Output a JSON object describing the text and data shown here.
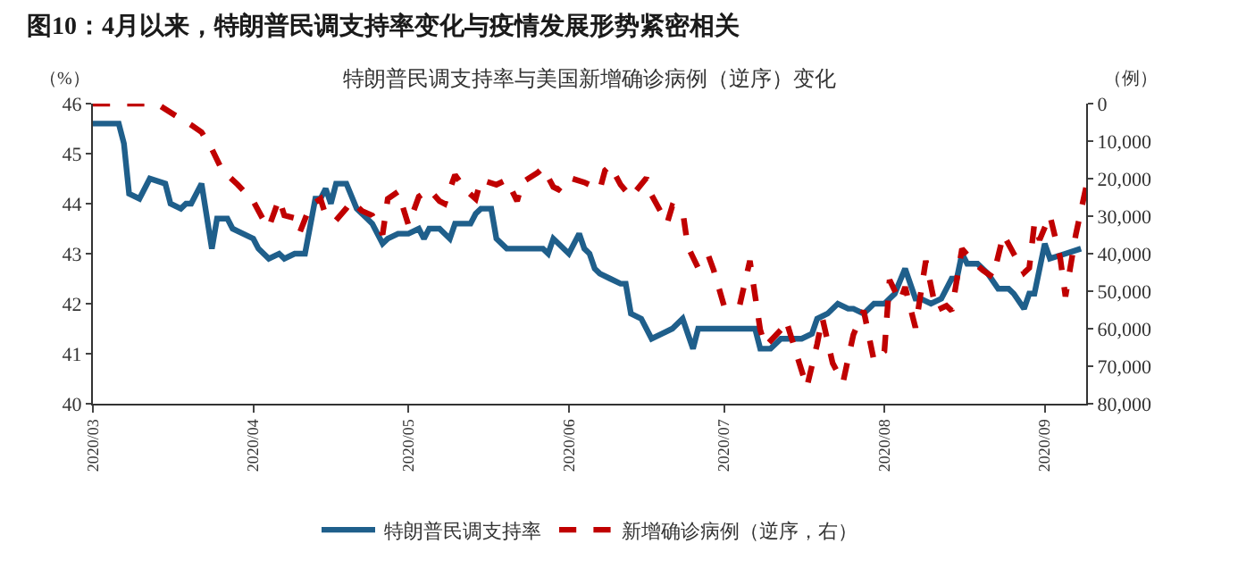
{
  "chart_data": {
    "type": "line",
    "title": "图10：4月以来，特朗普民调支持率变化与疫情发展形势紧密相关",
    "subtitle": "特朗普民调支持率与美国新增确诊病例（逆序）变化",
    "ylabel": "（%）",
    "y2label": "（例）",
    "xlim": [
      "2020-03-01",
      "2020-09-09"
    ],
    "xticks": [
      {
        "value": "2020-03-01",
        "label": "2020/03"
      },
      {
        "value": "2020-04-01",
        "label": "2020/04"
      },
      {
        "value": "2020-05-01",
        "label": "2020/05"
      },
      {
        "value": "2020-06-01",
        "label": "2020/06"
      },
      {
        "value": "2020-07-01",
        "label": "2020/07"
      },
      {
        "value": "2020-08-01",
        "label": "2020/08"
      },
      {
        "value": "2020-09-01",
        "label": "2020/09"
      }
    ],
    "ylim": [
      40,
      46
    ],
    "yticks": [
      40,
      41,
      42,
      43,
      44,
      45,
      46
    ],
    "y2lim": [
      80000,
      0
    ],
    "y2ticks": [
      0,
      {
        "value": 10000,
        "label": "10,000"
      },
      {
        "value": 20000,
        "label": "20,000"
      },
      {
        "value": 30000,
        "label": "30,000"
      },
      {
        "value": 40000,
        "label": "40,000"
      },
      {
        "value": 50000,
        "label": "50,000"
      },
      {
        "value": 60000,
        "label": "60,000"
      },
      {
        "value": 70000,
        "label": "70,000"
      },
      {
        "value": 80000,
        "label": "80,000"
      }
    ],
    "legend": "bottom",
    "series": [
      {
        "name": "特朗普民调支持率",
        "color": "#1f5f8b",
        "line_style": "solid",
        "x": [
          "2020-03-01",
          "2020-03-06",
          "2020-03-07",
          "2020-03-08",
          "2020-03-10",
          "2020-03-12",
          "2020-03-15",
          "2020-03-16",
          "2020-03-18",
          "2020-03-19",
          "2020-03-20",
          "2020-03-22",
          "2020-03-24",
          "2020-03-25",
          "2020-03-27",
          "2020-03-28",
          "2020-04-01",
          "2020-04-02",
          "2020-04-04",
          "2020-04-06",
          "2020-04-07",
          "2020-04-09",
          "2020-04-11",
          "2020-04-13",
          "2020-04-14",
          "2020-04-15",
          "2020-04-16",
          "2020-04-17",
          "2020-04-19",
          "2020-04-21",
          "2020-04-23",
          "2020-04-24",
          "2020-04-26",
          "2020-04-27",
          "2020-04-29",
          "2020-05-01",
          "2020-05-03",
          "2020-05-04",
          "2020-05-05",
          "2020-05-07",
          "2020-05-09",
          "2020-05-10",
          "2020-05-13",
          "2020-05-14",
          "2020-05-15",
          "2020-05-17",
          "2020-05-18",
          "2020-05-20",
          "2020-05-23",
          "2020-05-25",
          "2020-05-27",
          "2020-05-28",
          "2020-05-29",
          "2020-05-30",
          "2020-06-01",
          "2020-06-03",
          "2020-06-04",
          "2020-06-05",
          "2020-06-06",
          "2020-06-07",
          "2020-06-09",
          "2020-06-11",
          "2020-06-12",
          "2020-06-13",
          "2020-06-15",
          "2020-06-17",
          "2020-06-19",
          "2020-06-21",
          "2020-06-23",
          "2020-06-24",
          "2020-06-25",
          "2020-06-26",
          "2020-06-29",
          "2020-07-01",
          "2020-07-07",
          "2020-07-08",
          "2020-07-10",
          "2020-07-12",
          "2020-07-16",
          "2020-07-18",
          "2020-07-19",
          "2020-07-21",
          "2020-07-23",
          "2020-07-25",
          "2020-07-26",
          "2020-07-28",
          "2020-07-30",
          "2020-08-01",
          "2020-08-03",
          "2020-08-05",
          "2020-08-07",
          "2020-08-08",
          "2020-08-10",
          "2020-08-12",
          "2020-08-14",
          "2020-08-15",
          "2020-08-16",
          "2020-08-17",
          "2020-08-19",
          "2020-08-21",
          "2020-08-23",
          "2020-08-25",
          "2020-08-26",
          "2020-08-28",
          "2020-08-29",
          "2020-08-30",
          "2020-09-01",
          "2020-09-02",
          "2020-09-05",
          "2020-09-08"
        ],
        "values": [
          45.6,
          45.6,
          45.2,
          44.2,
          44.1,
          44.5,
          44.4,
          44.0,
          43.9,
          44.0,
          44.0,
          44.4,
          43.1,
          43.7,
          43.7,
          43.5,
          43.3,
          43.1,
          42.9,
          43.0,
          42.9,
          43.0,
          43.0,
          44.1,
          44.1,
          44.3,
          44.0,
          44.4,
          44.4,
          43.9,
          43.7,
          43.6,
          43.2,
          43.3,
          43.4,
          43.4,
          43.5,
          43.3,
          43.5,
          43.5,
          43.3,
          43.6,
          43.6,
          43.8,
          43.9,
          43.9,
          43.3,
          43.1,
          43.1,
          43.1,
          43.1,
          43.0,
          43.3,
          43.2,
          43.0,
          43.4,
          43.1,
          43.0,
          42.7,
          42.6,
          42.5,
          42.4,
          42.4,
          41.8,
          41.7,
          41.3,
          41.4,
          41.5,
          41.7,
          41.4,
          41.1,
          41.5,
          41.5,
          41.5,
          41.5,
          41.1,
          41.1,
          41.3,
          41.3,
          41.4,
          41.7,
          41.8,
          42.0,
          41.9,
          41.9,
          41.8,
          42.0,
          42.0,
          42.2,
          42.7,
          42.1,
          42.1,
          42.0,
          42.1,
          42.5,
          42.5,
          43.0,
          42.8,
          42.8,
          42.6,
          42.3,
          42.3,
          42.2,
          41.9,
          42.2,
          42.2,
          43.2,
          42.9,
          43.0,
          43.1
        ]
      },
      {
        "name": "新增确诊病例（逆序，右）",
        "color": "#c00000",
        "line_style": "dashed",
        "axis": "y2",
        "x": [
          "2020-03-01",
          "2020-03-11",
          "2020-03-14",
          "2020-03-17",
          "2020-03-20",
          "2020-03-22",
          "2020-03-24",
          "2020-03-26",
          "2020-03-29",
          "2020-04-01",
          "2020-04-03",
          "2020-04-04",
          "2020-04-06",
          "2020-04-07",
          "2020-04-09",
          "2020-04-10",
          "2020-04-12",
          "2020-04-14",
          "2020-04-15",
          "2020-04-17",
          "2020-04-19",
          "2020-04-20",
          "2020-04-22",
          "2020-04-24",
          "2020-04-26",
          "2020-04-27",
          "2020-04-29",
          "2020-05-01",
          "2020-05-03",
          "2020-05-05",
          "2020-05-07",
          "2020-05-08",
          "2020-05-10",
          "2020-05-12",
          "2020-05-14",
          "2020-05-15",
          "2020-05-18",
          "2020-05-20",
          "2020-05-22",
          "2020-05-23",
          "2020-05-26",
          "2020-05-27",
          "2020-05-29",
          "2020-05-30",
          "2020-06-01",
          "2020-06-04",
          "2020-06-07",
          "2020-06-08",
          "2020-06-09",
          "2020-06-11",
          "2020-06-13",
          "2020-06-16",
          "2020-06-17",
          "2020-06-20",
          "2020-06-21",
          "2020-06-23",
          "2020-06-24",
          "2020-06-26",
          "2020-06-28",
          "2020-06-29",
          "2020-07-01",
          "2020-07-04",
          "2020-07-06",
          "2020-07-08",
          "2020-07-09",
          "2020-07-12",
          "2020-07-13",
          "2020-07-15",
          "2020-07-17",
          "2020-07-19",
          "2020-07-20",
          "2020-07-22",
          "2020-07-24",
          "2020-07-26",
          "2020-07-28",
          "2020-07-30",
          "2020-08-01",
          "2020-08-02",
          "2020-08-04",
          "2020-08-05",
          "2020-08-07",
          "2020-08-09",
          "2020-08-11",
          "2020-08-13",
          "2020-08-14",
          "2020-08-16",
          "2020-08-18",
          "2020-08-20",
          "2020-08-22",
          "2020-08-24",
          "2020-08-26",
          "2020-08-28",
          "2020-08-29",
          "2020-08-30",
          "2020-08-31",
          "2020-09-02",
          "2020-09-04",
          "2020-09-05",
          "2020-09-07",
          "2020-09-09"
        ],
        "values": [
          0,
          0,
          600,
          3200,
          5700,
          7600,
          12100,
          17800,
          21600,
          26000,
          31100,
          33000,
          25400,
          29800,
          30500,
          34300,
          27300,
          25400,
          29800,
          31100,
          27900,
          26000,
          28600,
          29800,
          34900,
          25400,
          23500,
          32400,
          24800,
          22900,
          26000,
          26700,
          19000,
          22900,
          25400,
          20300,
          21600,
          20300,
          26000,
          21000,
          18400,
          17100,
          22200,
          22900,
          19700,
          21000,
          22900,
          17800,
          16500,
          21600,
          24900,
          19800,
          24400,
          31900,
          27300,
          28600,
          38100,
          43800,
          40600,
          44400,
          53900,
          53900,
          41900,
          60300,
          64700,
          60300,
          57800,
          66700,
          75600,
          64100,
          57100,
          69200,
          74300,
          61600,
          55200,
          68600,
          66000,
          47000,
          52700,
          48900,
          59700,
          41900,
          55200,
          53900,
          55200,
          38700,
          41900,
          44400,
          46300,
          34900,
          40000,
          45100,
          43800,
          31900,
          36300,
          29800,
          41300,
          51400,
          34900,
          22200
        ]
      }
    ]
  }
}
